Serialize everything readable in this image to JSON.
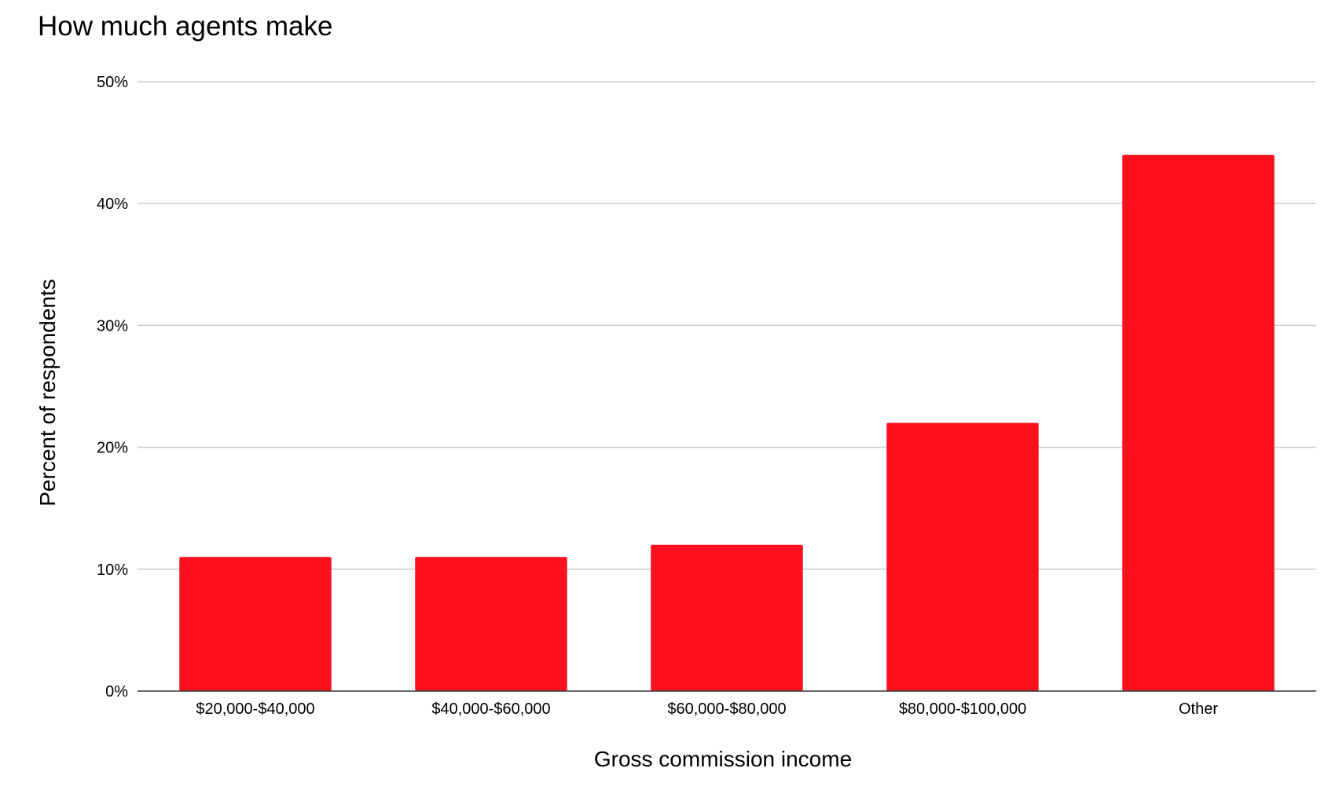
{
  "chart_data": {
    "type": "bar",
    "title": "How much agents make",
    "xlabel": "Gross commission income",
    "ylabel": "Percent of respondents",
    "categories": [
      "$20,000-$40,000",
      "$40,000-$60,000",
      "$60,000-$80,000",
      "$80,000-$100,000",
      "Other"
    ],
    "values": [
      11,
      11,
      12,
      22,
      44
    ],
    "unit": "%",
    "ylim": [
      0,
      50
    ],
    "yticks": [
      0,
      10,
      20,
      30,
      40,
      50
    ],
    "ytick_labels": [
      "0%",
      "10%",
      "20%",
      "30%",
      "40%",
      "50%"
    ],
    "grid": true,
    "legend": "none",
    "bar_color": "#fc101e",
    "grid_color": "#cccccc",
    "axis_color": "#333333"
  }
}
